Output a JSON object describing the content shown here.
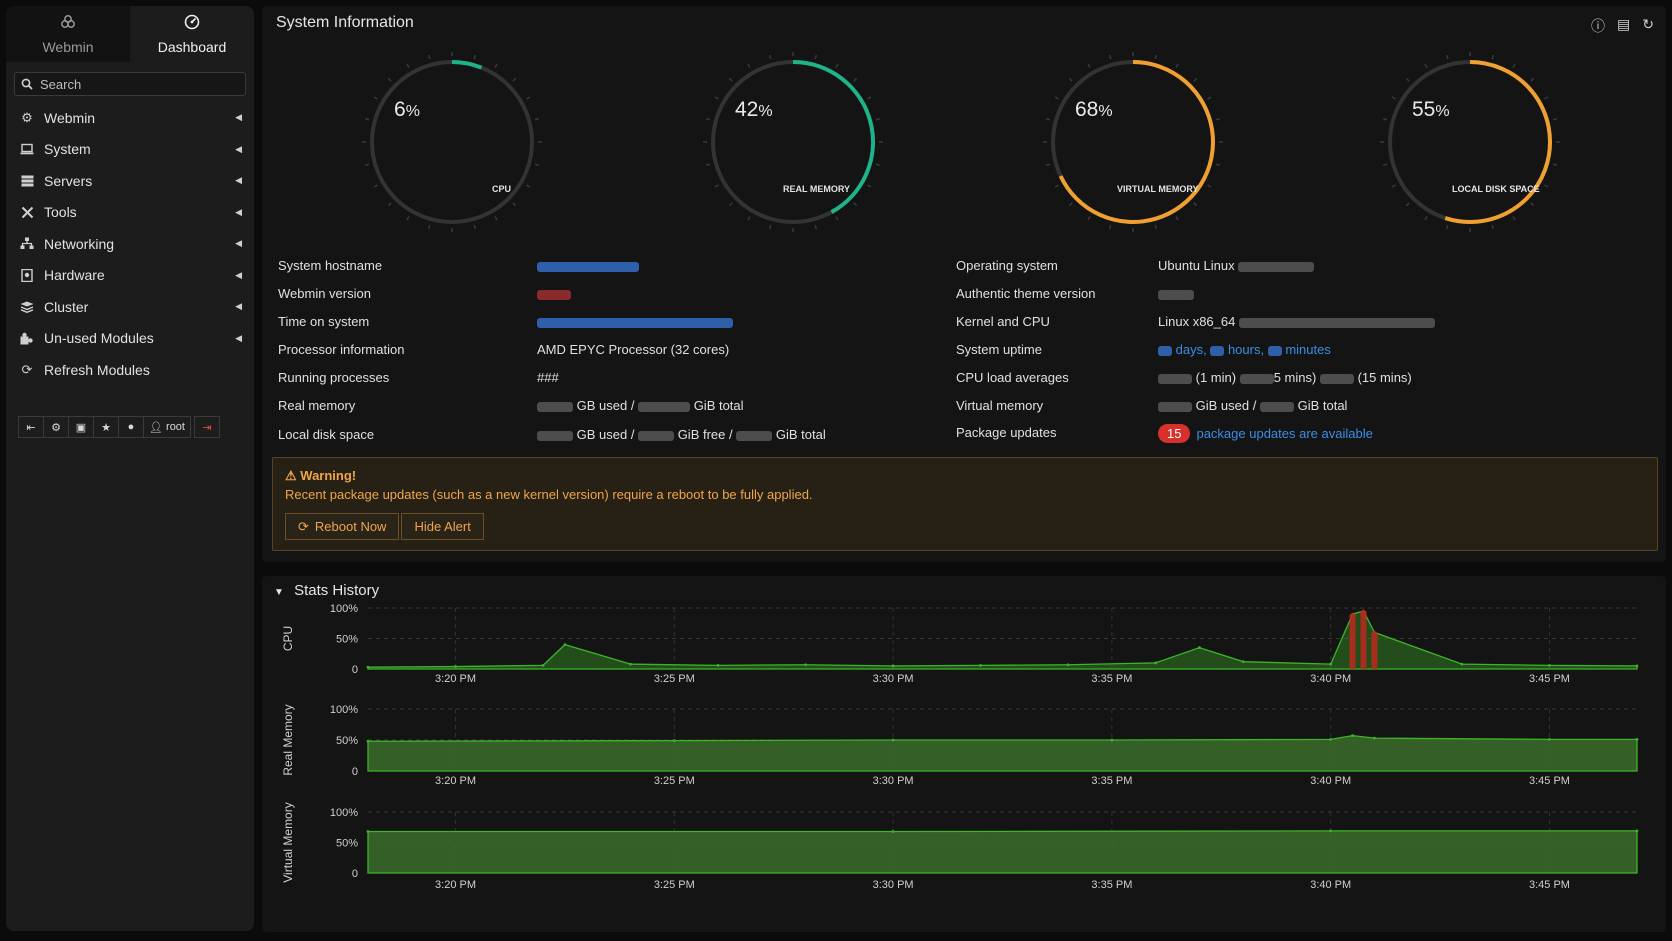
{
  "sidebar": {
    "tabs": [
      {
        "label": "Webmin",
        "icon": "webmin-icon"
      },
      {
        "label": "Dashboard",
        "icon": "dashboard-icon"
      }
    ],
    "search_placeholder": "Search",
    "menu": [
      {
        "label": "Webmin",
        "icon": "gear-icon"
      },
      {
        "label": "System",
        "icon": "laptop-icon"
      },
      {
        "label": "Servers",
        "icon": "server-icon"
      },
      {
        "label": "Tools",
        "icon": "tools-icon"
      },
      {
        "label": "Networking",
        "icon": "network-icon"
      },
      {
        "label": "Hardware",
        "icon": "hardware-icon"
      },
      {
        "label": "Cluster",
        "icon": "cluster-icon"
      },
      {
        "label": "Un-used Modules",
        "icon": "puzzle-icon"
      },
      {
        "label": "Refresh Modules",
        "icon": "refresh-icon"
      }
    ],
    "user": "root"
  },
  "system_info": {
    "title": "System Information",
    "gauges": [
      {
        "label": "CPU",
        "value": 6,
        "display": "6",
        "unit": "%",
        "color": "#1fb38a"
      },
      {
        "label": "REAL MEMORY",
        "value": 42,
        "display": "42",
        "unit": "%",
        "color": "#1fb38a"
      },
      {
        "label": "VIRTUAL MEMORY",
        "value": 68,
        "display": "68",
        "unit": "%",
        "color": "#f0a030"
      },
      {
        "label": "LOCAL DISK SPACE",
        "value": 55,
        "display": "55",
        "unit": "%",
        "color": "#f0a030"
      }
    ],
    "left": {
      "hostname_label": "System hostname",
      "webmin_label": "Webmin version",
      "time_label": "Time on system",
      "processor_label": "Processor information",
      "processor_value": "AMD EPYC Processor (32 cores)",
      "processes_label": "Running processes",
      "processes_value": "###",
      "realmem_label": "Real memory",
      "realmem_used": "GB used /",
      "realmem_total": "GiB total",
      "disk_label": "Local disk space",
      "disk_used": "GB used /",
      "disk_free": "GiB free /",
      "disk_total": "GiB total"
    },
    "right": {
      "os_label": "Operating system",
      "os_value": "Ubuntu Linux",
      "theme_label": "Authentic theme version",
      "kernel_label": "Kernel and CPU",
      "kernel_value": "Linux x86_64",
      "uptime_label": "System uptime",
      "uptime_days": "days,",
      "uptime_hours": "hours,",
      "uptime_minutes": "minutes",
      "load_label": "CPU load averages",
      "load_1": "(1 min)",
      "load_5": "5 mins)",
      "load_15": "(15 mins)",
      "vmem_label": "Virtual memory",
      "vmem_used": "GiB used /",
      "vmem_total": "GiB total",
      "updates_label": "Package updates",
      "updates_count": "15",
      "updates_text": "package updates are available"
    }
  },
  "warning": {
    "title": "Warning!",
    "text": "Recent package updates (such as a new kernel version) require a reboot to be fully applied.",
    "reboot_label": "Reboot Now",
    "hide_label": "Hide Alert"
  },
  "stats_history": {
    "title": "Stats History"
  },
  "chart_data": [
    {
      "type": "area",
      "ylabel": "CPU",
      "yticks": [
        "100%",
        "50%",
        "0"
      ],
      "ylim": [
        0,
        100
      ],
      "x_ticks": [
        "3:20 PM",
        "3:25 PM",
        "3:30 PM",
        "3:35 PM",
        "3:40 PM",
        "3:45 PM"
      ],
      "x": [
        "3:18",
        "3:20",
        "3:22",
        "3:22:30",
        "3:24",
        "3:26",
        "3:28",
        "3:30",
        "3:32",
        "3:34",
        "3:36",
        "3:37",
        "3:38",
        "3:40",
        "3:40:30",
        "3:40:45",
        "3:41",
        "3:43",
        "3:45",
        "3:47"
      ],
      "series": [
        {
          "values": [
            3,
            4,
            6,
            40,
            8,
            6,
            7,
            5,
            6,
            7,
            10,
            35,
            12,
            8,
            90,
            95,
            60,
            8,
            6,
            5
          ]
        }
      ],
      "color": "#3cb528",
      "highlight_color": "#c0281e",
      "grid": true
    },
    {
      "type": "area",
      "ylabel": "Real Memory",
      "yticks": [
        "100%",
        "50%",
        "0"
      ],
      "ylim": [
        0,
        100
      ],
      "x_ticks": [
        "3:20 PM",
        "3:25 PM",
        "3:30 PM",
        "3:35 PM",
        "3:40 PM",
        "3:45 PM"
      ],
      "x": [
        "3:18",
        "3:25",
        "3:30",
        "3:35",
        "3:40",
        "3:40:30",
        "3:41",
        "3:45",
        "3:47"
      ],
      "series": [
        {
          "values": [
            48,
            49,
            50,
            50,
            51,
            57,
            53,
            51,
            51
          ]
        }
      ],
      "color": "#3cb528",
      "grid": true
    },
    {
      "type": "area",
      "ylabel": "Virtual Memory",
      "yticks": [
        "100%",
        "50%",
        "0"
      ],
      "ylim": [
        0,
        100
      ],
      "x_ticks": [
        "3:20 PM",
        "3:25 PM",
        "3:30 PM",
        "3:35 PM",
        "3:40 PM",
        "3:45 PM"
      ],
      "x": [
        "3:18",
        "3:30",
        "3:40",
        "3:47"
      ],
      "series": [
        {
          "values": [
            68,
            68,
            69,
            69
          ]
        }
      ],
      "color": "#3cb528",
      "grid": true
    }
  ]
}
